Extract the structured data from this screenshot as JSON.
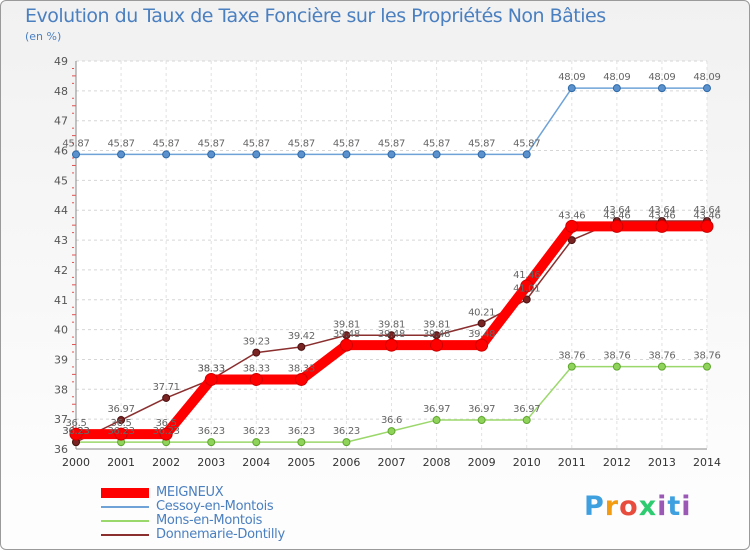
{
  "chart_data": {
    "type": "line",
    "title": "Evolution du Taux de Taxe Foncière sur les Propriétés Non Bâties",
    "subtitle": "(en %)",
    "x": [
      "2000",
      "2001",
      "2002",
      "2003",
      "2004",
      "2005",
      "2006",
      "2007",
      "2008",
      "2009",
      "2010",
      "2011",
      "2012",
      "2013",
      "2014"
    ],
    "ylim": [
      36,
      49
    ],
    "yticks": [
      "36",
      "37",
      "38",
      "39",
      "40",
      "41",
      "42",
      "43",
      "44",
      "45",
      "46",
      "47",
      "48",
      "49"
    ],
    "series": [
      {
        "name": "MEIGNEUX",
        "color": "#ff0000",
        "values": [
          36.5,
          36.5,
          36.5,
          38.33,
          38.33,
          38.33,
          39.48,
          39.48,
          39.48,
          39.48,
          41.46,
          43.46,
          43.46,
          43.46,
          43.46
        ],
        "labels": [
          "36.5",
          "36.5",
          "36.5",
          "38.33",
          "38.33",
          "38.33",
          "39.48",
          "39.48",
          "39.48",
          "39.48",
          "41.46",
          "43.46",
          "43.46",
          "43.46",
          "43.46"
        ]
      },
      {
        "name": "Cessoy-en-Montois",
        "color": "#6fa3d8",
        "values": [
          45.87,
          45.87,
          45.87,
          45.87,
          45.87,
          45.87,
          45.87,
          45.87,
          45.87,
          45.87,
          45.87,
          48.09,
          48.09,
          48.09,
          48.09
        ],
        "labels": [
          "45.87",
          "45.87",
          "45.87",
          "45.87",
          "45.87",
          "45.87",
          "45.87",
          "45.87",
          "45.87",
          "45.87",
          "45.87",
          "48.09",
          "48.09",
          "48.09",
          "48.09"
        ]
      },
      {
        "name": "Mons-en-Montois",
        "color": "#9bd86b",
        "values": [
          36.23,
          36.23,
          36.23,
          36.23,
          36.23,
          36.23,
          36.23,
          36.6,
          36.97,
          36.97,
          36.97,
          38.76,
          38.76,
          38.76,
          38.76
        ],
        "labels": [
          "36.23",
          "36.23",
          "36.23",
          "36.23",
          "36.23",
          "36.23",
          "36.23",
          "36.6",
          "36.97",
          "36.97",
          "36.97",
          "38.76",
          "38.76",
          "38.76",
          "38.76"
        ]
      },
      {
        "name": "Donnemarie-Dontilly",
        "color": "#8b2e2e",
        "values": [
          36.23,
          36.97,
          37.71,
          38.33,
          39.23,
          39.42,
          39.81,
          39.81,
          39.81,
          40.21,
          41.01,
          43.0,
          43.64,
          43.64,
          43.64
        ],
        "labels": [
          "36.23",
          "36.97",
          "37.71",
          "38.33",
          "39.23",
          "39.42",
          "39.81",
          "39.81",
          "39.81",
          "40.21",
          "41.01",
          "",
          "43.64",
          "43.64",
          "43.64"
        ]
      }
    ]
  },
  "logo": {
    "p": "P",
    "r": "r",
    "o": "o",
    "x": "x",
    "i": "i",
    "t": "t",
    "i2": "i"
  }
}
